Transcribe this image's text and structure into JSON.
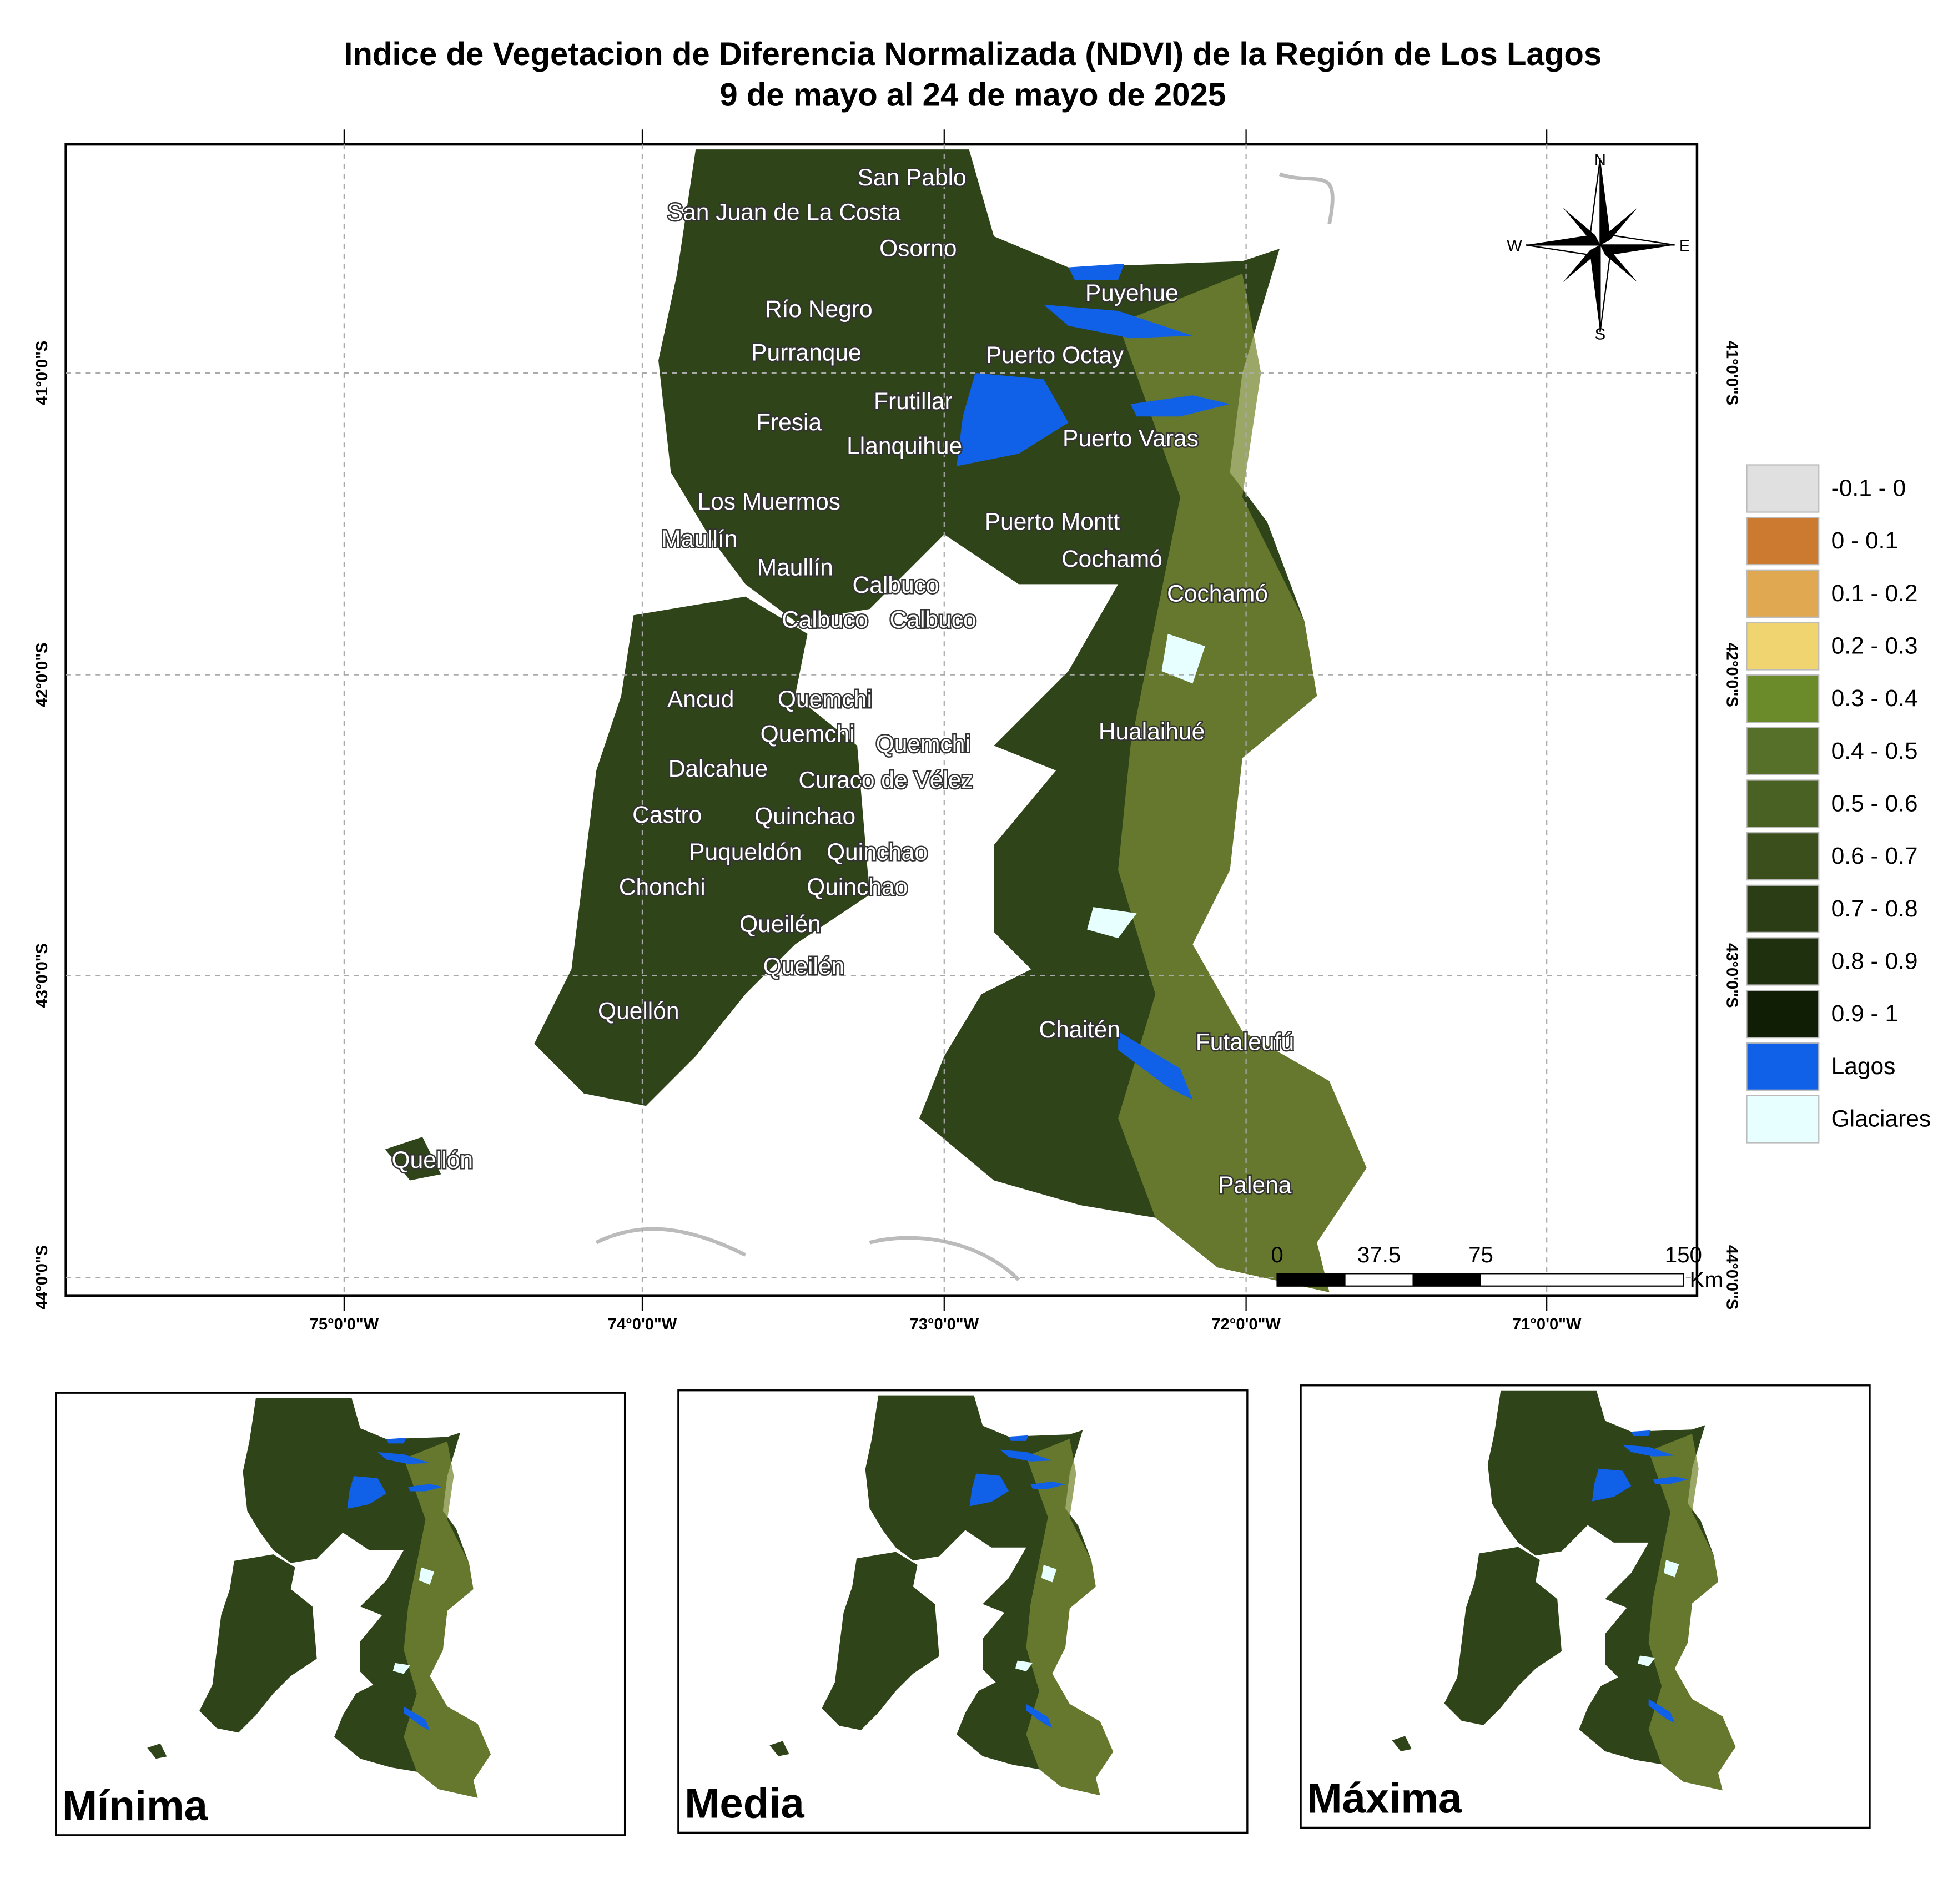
{
  "title": "Indice de Vegetacion de Diferencia Normalizada (NDVI) de la Región de Los Lagos",
  "subtitle": "9 de mayo al 24 de mayo de 2025",
  "lon_labels": [
    "75°0'0\"W",
    "74°0'0\"W",
    "73°0'0\"W",
    "72°0'0\"W",
    "71°0'0\"W"
  ],
  "lat_labels": [
    "41°0'0\"S",
    "42°0'0\"S",
    "43°0'0\"S",
    "44°0'0\"S"
  ],
  "compass": {
    "n": "N",
    "s": "S",
    "e": "E",
    "w": "W"
  },
  "places": [
    "San Pablo",
    "San Juan de La Costa",
    "Osorno",
    "Puyehue",
    "Río Negro",
    "Purranque",
    "Puerto Octay",
    "Frutillar",
    "Fresia",
    "Llanquihue",
    "Puerto Varas",
    "Los Muermos",
    "Puerto Montt",
    "Maullín",
    "Cochamó",
    "Maullín",
    "Calbuco",
    "Cochamó",
    "Calbuco",
    "Calbuco",
    "Ancud",
    "Quemchi",
    "Quemchi",
    "Quemchi",
    "Hualaihué",
    "Dalcahue",
    "Curaco de Vélez",
    "Castro",
    "Quinchao",
    "Puqueldón",
    "Quinchao",
    "Chonchi",
    "Quinchao",
    "Queilén",
    "Queilén",
    "Quellón",
    "Chaitén",
    "Futaleufú",
    "Quellón",
    "Palena"
  ],
  "legend": [
    {
      "label": "-0.1 - 0",
      "color": "#e0e0e0"
    },
    {
      "label": "0 - 0.1",
      "color": "#cc7a30"
    },
    {
      "label": "0.1 - 0.2",
      "color": "#e0a850"
    },
    {
      "label": "0.2 - 0.3",
      "color": "#f0d470"
    },
    {
      "label": "0.3 - 0.4",
      "color": "#6b8a2a"
    },
    {
      "label": "0.4 - 0.5",
      "color": "#56702a"
    },
    {
      "label": "0.5 - 0.6",
      "color": "#4a6124"
    },
    {
      "label": "0.6 - 0.7",
      "color": "#3a4f1c"
    },
    {
      "label": "0.7 - 0.8",
      "color": "#2a3d14"
    },
    {
      "label": "0.8 - 0.9",
      "color": "#1f300e"
    },
    {
      "label": "0.9 - 1",
      "color": "#101e06"
    },
    {
      "label": "Lagos",
      "color": "#1060e8"
    },
    {
      "label": "Glaciares",
      "color": "#e8ffff"
    }
  ],
  "scale_bar": {
    "ticks": [
      "0",
      "37.5",
      "75",
      "150"
    ],
    "unit": "Km"
  },
  "insets": [
    "Mínima",
    "Media",
    "Máxima"
  ]
}
